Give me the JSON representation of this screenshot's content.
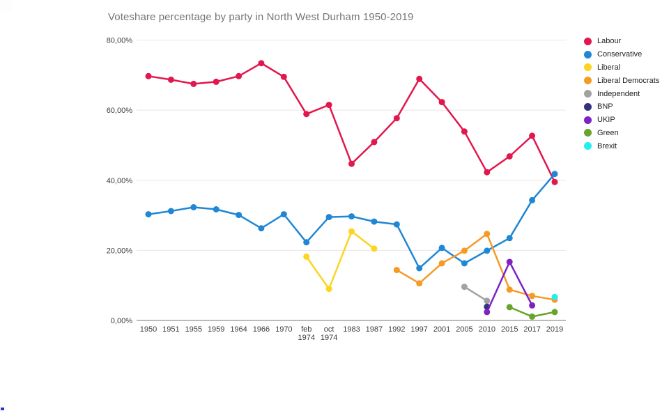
{
  "window": {
    "background": "#ffffff"
  },
  "artifacts": {
    "top_left_square_color": "#fdfdfd",
    "bottom_left_pixel_color": "#3333cc"
  },
  "chart_data": {
    "type": "line",
    "title": "Voteshare percentage by party in North West Durham 1950-2019",
    "title_color": "#757575",
    "xlabel": "",
    "ylabel": "",
    "ylim": [
      0,
      80
    ],
    "grid": true,
    "legend_position": "right",
    "axis_color": "#757575",
    "gridline_color": "#e6e6e6",
    "tick_label_color": "#3c3c3c",
    "categories": [
      "1950",
      "1951",
      "1955",
      "1959",
      "1964",
      "1966",
      "1970",
      "feb 1974",
      "oct 1974",
      "1983",
      "1987",
      "1992",
      "1997",
      "2001",
      "2005",
      "2010",
      "2015",
      "2017",
      "2019"
    ],
    "y_ticks": [
      {
        "value": 0,
        "label": "0,00%"
      },
      {
        "value": 20,
        "label": "20,00%"
      },
      {
        "value": 40,
        "label": "40,00%"
      },
      {
        "value": 60,
        "label": "60,00%"
      },
      {
        "value": 80,
        "label": "80,00%"
      }
    ],
    "series": [
      {
        "name": "Labour",
        "color": "#e2174d",
        "values": [
          69.7,
          68.7,
          67.5,
          68.1,
          69.7,
          73.4,
          69.5,
          58.9,
          61.5,
          44.7,
          50.9,
          57.7,
          68.9,
          62.3,
          53.9,
          42.3,
          46.8,
          52.7,
          39.5
        ]
      },
      {
        "name": "Conservative",
        "color": "#1f87d4",
        "values": [
          30.3,
          31.2,
          32.3,
          31.7,
          30.1,
          26.3,
          30.3,
          22.3,
          29.5,
          29.7,
          28.2,
          27.4,
          14.9,
          20.7,
          16.3,
          19.9,
          23.5,
          34.3,
          41.8
        ]
      },
      {
        "name": "Liberal",
        "color": "#fdd420",
        "values": [
          null,
          null,
          null,
          null,
          null,
          null,
          null,
          18.2,
          9.0,
          25.4,
          20.5,
          null,
          null,
          null,
          null,
          null,
          null,
          null,
          null
        ]
      },
      {
        "name": "Liberal Democrats",
        "color": "#f59b25",
        "values": [
          null,
          null,
          null,
          null,
          null,
          null,
          null,
          null,
          null,
          null,
          null,
          14.4,
          10.6,
          16.3,
          19.9,
          24.7,
          8.8,
          7.0,
          5.9
        ]
      },
      {
        "name": "Independent",
        "color": "#a2a2a2",
        "values": [
          null,
          null,
          null,
          null,
          null,
          null,
          null,
          null,
          null,
          null,
          null,
          null,
          null,
          null,
          9.6,
          5.6,
          null,
          null,
          null
        ]
      },
      {
        "name": "BNP",
        "color": "#32327e",
        "values": [
          null,
          null,
          null,
          null,
          null,
          null,
          null,
          null,
          null,
          null,
          null,
          null,
          null,
          null,
          null,
          3.9,
          null,
          null,
          null
        ]
      },
      {
        "name": "UKIP",
        "color": "#7d22c3",
        "values": [
          null,
          null,
          null,
          null,
          null,
          null,
          null,
          null,
          null,
          null,
          null,
          null,
          null,
          null,
          null,
          2.4,
          16.7,
          4.3,
          null
        ]
      },
      {
        "name": "Green",
        "color": "#6aa32a",
        "values": [
          null,
          null,
          null,
          null,
          null,
          null,
          null,
          null,
          null,
          null,
          null,
          null,
          null,
          null,
          null,
          null,
          3.8,
          1.1,
          2.4
        ]
      },
      {
        "name": "Brexit",
        "color": "#22eeee",
        "values": [
          null,
          null,
          null,
          null,
          null,
          null,
          null,
          null,
          null,
          null,
          null,
          null,
          null,
          null,
          null,
          null,
          null,
          null,
          6.7
        ]
      }
    ]
  }
}
